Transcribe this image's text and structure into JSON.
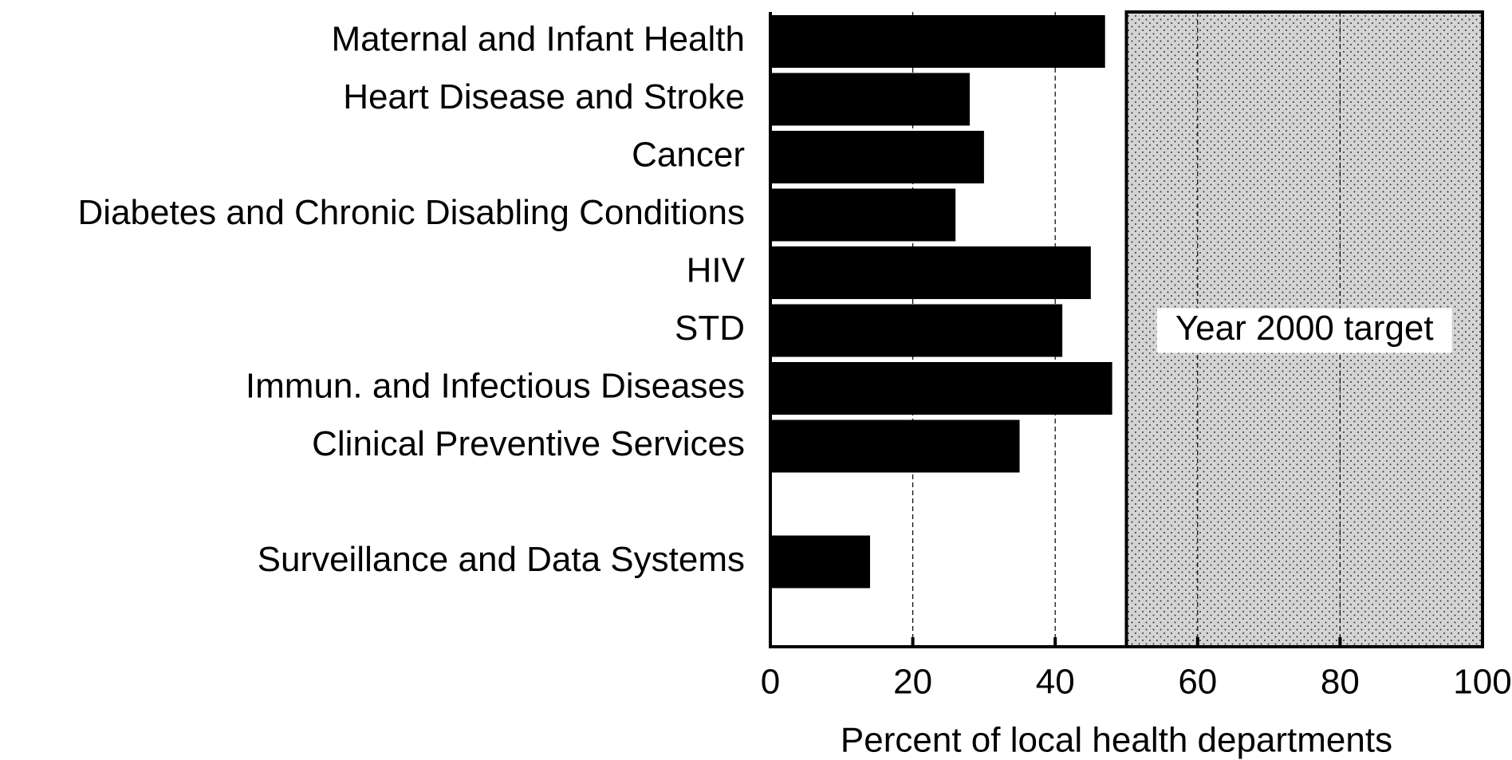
{
  "chart_data": {
    "type": "bar",
    "orientation": "horizontal",
    "categories": [
      "Maternal and Infant Health",
      "Heart Disease and Stroke",
      "Cancer",
      "Diabetes and Chronic Disabling Conditions",
      "HIV",
      "STD",
      "Immun. and Infectious Diseases",
      "Clinical Preventive Services",
      null,
      "Surveillance and Data Systems"
    ],
    "values": [
      47,
      28,
      30,
      26,
      45,
      41,
      48,
      35,
      null,
      14
    ],
    "color": "#000000",
    "xlabel": "Percent of local health departments",
    "xlim": [
      0,
      100
    ],
    "xticks": [
      0,
      20,
      40,
      60,
      80,
      100
    ],
    "grid": true,
    "target": {
      "label": "Year 2000 target",
      "from": 50,
      "to": 100
    }
  }
}
